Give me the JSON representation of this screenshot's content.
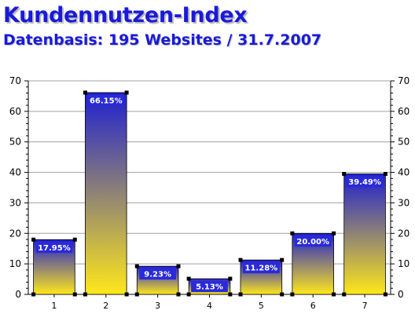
{
  "header": {
    "title": "Kundennutzen-Index",
    "subtitle": "Datenbasis: 195 Websites / 31.7.2007"
  },
  "colors": {
    "title": "#1a1ad8",
    "bar_top": "#1f1fd0",
    "bar_bottom": "#ffe81a",
    "label_box": "#2a2ad8",
    "grid": "#a0a0a0"
  },
  "chart_data": {
    "type": "bar",
    "categories": [
      "1",
      "2",
      "3",
      "4",
      "5",
      "6",
      "7"
    ],
    "values": [
      17.95,
      66.15,
      9.23,
      5.13,
      11.28,
      20.0,
      39.49
    ],
    "data_labels": [
      "17.95%",
      "66.15%",
      "9.23%",
      "5.13%",
      "11.28%",
      "20.00%",
      "39.49%"
    ],
    "title": "Kundennutzen-Index",
    "xlabel": "",
    "ylabel": "",
    "ylim": [
      0,
      70
    ],
    "yticks": [
      0,
      10,
      20,
      30,
      40,
      50,
      60,
      70
    ],
    "y_axis_both_sides": true,
    "grid": true,
    "legend": "none"
  }
}
